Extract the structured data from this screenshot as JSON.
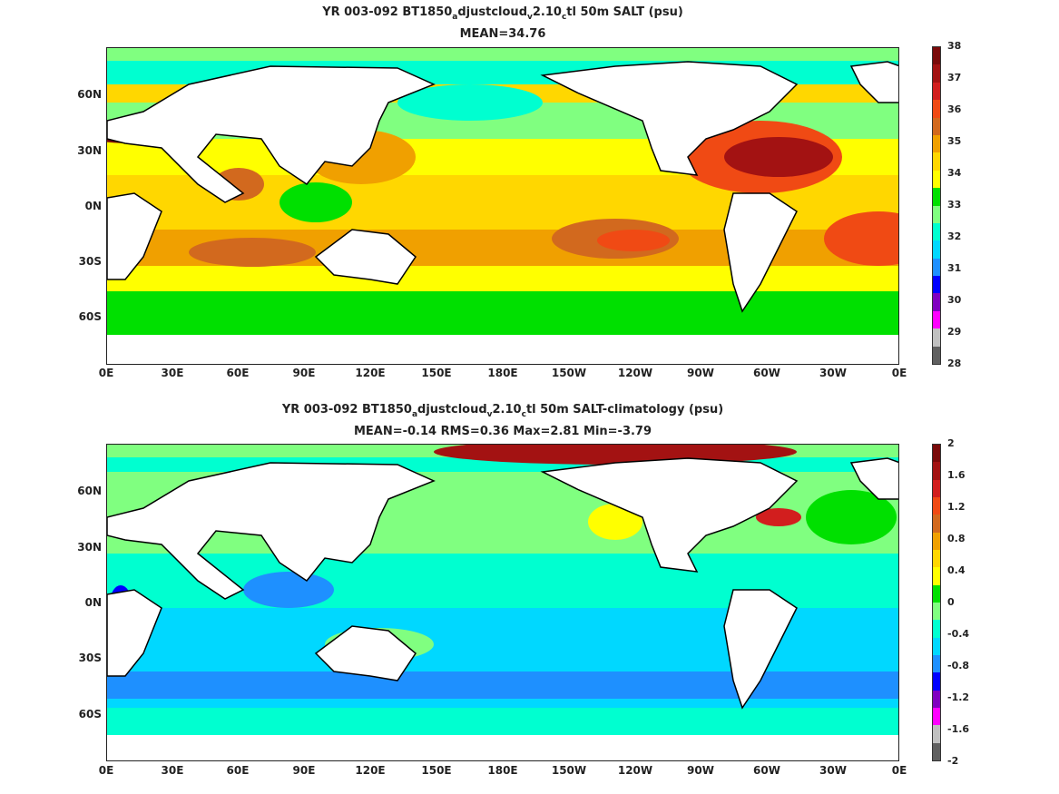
{
  "panels": [
    {
      "id": "top",
      "title_parts": [
        "YR 003-092 BT1850",
        "a",
        "djustcloud",
        "v",
        "2.10",
        "c",
        "tl 50m SALT (psu)"
      ],
      "subtitle": "MEAN=34.76",
      "x_ticks": [
        "0E",
        "30E",
        "60E",
        "90E",
        "120E",
        "150E",
        "180E",
        "150W",
        "120W",
        "90W",
        "60W",
        "30W",
        "0E"
      ],
      "y_ticks": [
        "60N",
        "30N",
        "0N",
        "30S",
        "60S"
      ],
      "colorbar": {
        "labels": [
          "38",
          "37",
          "36",
          "35",
          "34",
          "33",
          "32",
          "31",
          "30",
          "29",
          "28"
        ],
        "colors": [
          "#7a0a0a",
          "#a31212",
          "#d21e1e",
          "#f04a14",
          "#d2691e",
          "#f0a000",
          "#ffd700",
          "#ffff00",
          "#00e000",
          "#80ff80",
          "#00ffd0",
          "#00d8ff",
          "#1e90ff",
          "#0000ff",
          "#8000c0",
          "#ff00ff",
          "#c0c0c0",
          "#606060"
        ]
      }
    },
    {
      "id": "bottom",
      "title_parts": [
        "YR 003-092 BT1850",
        "a",
        "djustcloud",
        "v",
        "2.10",
        "c",
        "tl 50m SALT-climatology (psu)"
      ],
      "subtitle": "MEAN=-0.14   RMS=0.36   Max=2.81   Min=-3.79",
      "x_ticks": [
        "0E",
        "30E",
        "60E",
        "90E",
        "120E",
        "150E",
        "180E",
        "150W",
        "120W",
        "90W",
        "60W",
        "30W",
        "0E"
      ],
      "y_ticks": [
        "60N",
        "30N",
        "0N",
        "30S",
        "60S"
      ],
      "colorbar": {
        "labels": [
          "2",
          "1.6",
          "1.2",
          "0.8",
          "0.4",
          "0",
          "-0.4",
          "-0.8",
          "-1.2",
          "-1.6",
          "-2"
        ],
        "colors": [
          "#7a0a0a",
          "#a31212",
          "#d21e1e",
          "#f04a14",
          "#d2691e",
          "#f0a000",
          "#ffd700",
          "#ffff00",
          "#00e000",
          "#80ff80",
          "#00ffd0",
          "#00d8ff",
          "#1e90ff",
          "#0000ff",
          "#8000c0",
          "#ff00ff",
          "#c0c0c0",
          "#606060"
        ]
      }
    }
  ]
}
